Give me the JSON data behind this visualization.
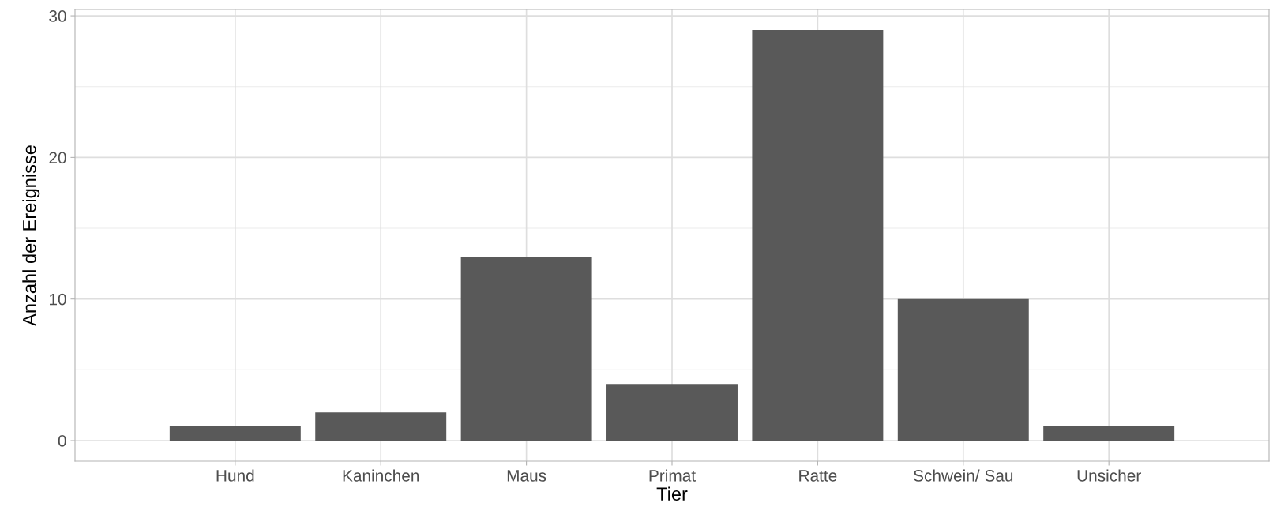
{
  "chart_data": {
    "type": "bar",
    "xlabel": "Tier",
    "ylabel": "Anzahl der Ereignisse",
    "categories": [
      "Hund",
      "Kaninchen",
      "Maus",
      "Primat",
      "Ratte",
      "Schwein/ Sau",
      "Unsicher"
    ],
    "values": [
      1,
      2,
      13,
      4,
      29,
      10,
      1
    ],
    "color": "#595959",
    "ylim": [
      -1.45,
      30.45
    ],
    "yticks": [
      0,
      10,
      20,
      30
    ],
    "grid": true
  }
}
